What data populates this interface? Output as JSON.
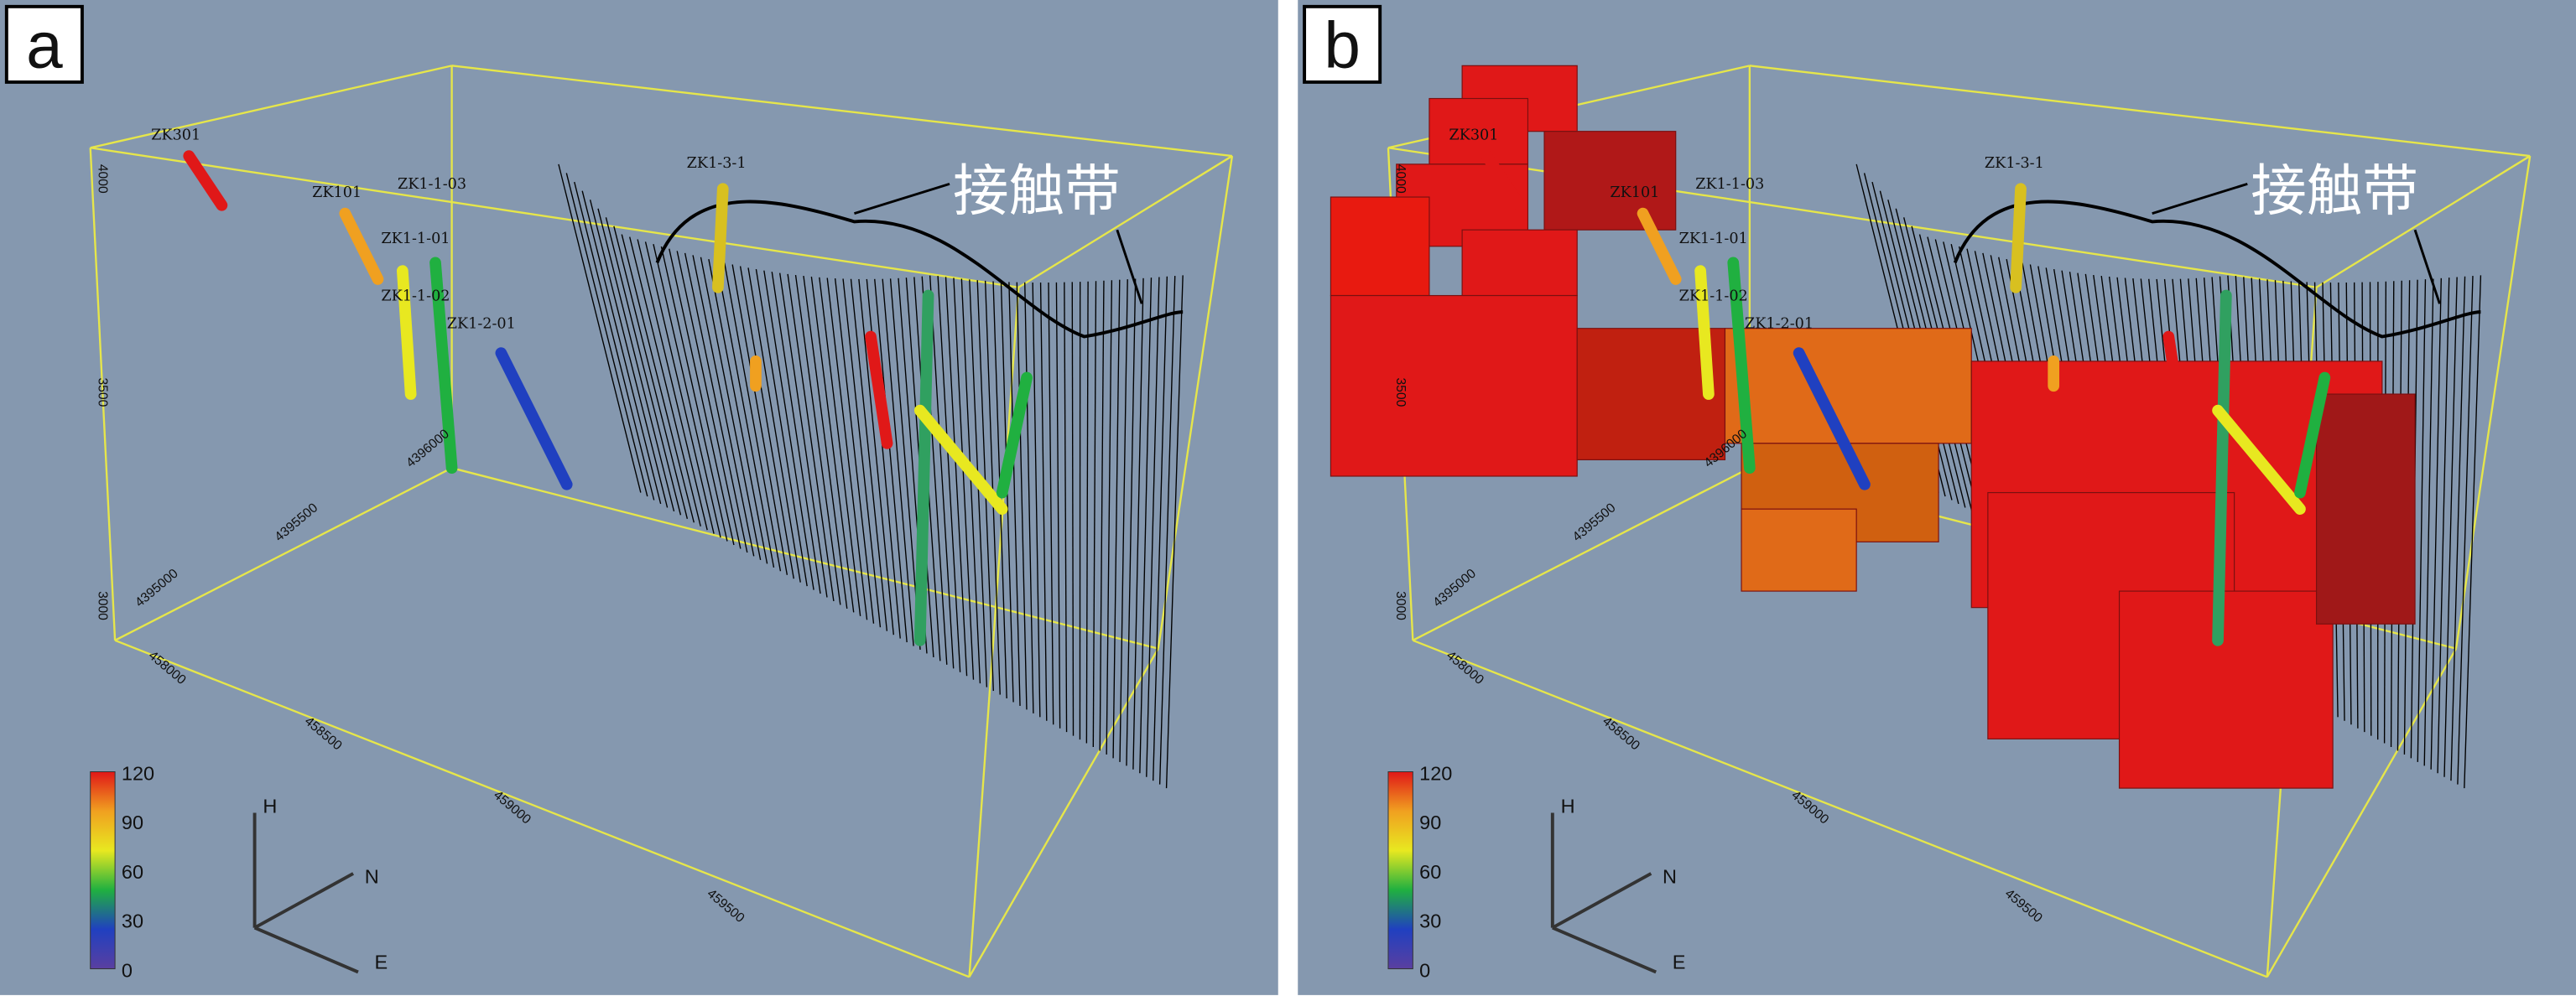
{
  "panels": [
    {
      "label": "a",
      "annotation": "接触带",
      "drill_labels": [
        "ZK301",
        "ZK101",
        "ZK1-1-03",
        "ZK1-1-01",
        "ZK1-1-02",
        "ZK1-2-01",
        "ZK1-3-1"
      ],
      "elevation_ticks": [
        "4000",
        "3500",
        "3000"
      ],
      "easting_ticks": [
        "458000",
        "458500",
        "459000",
        "459500"
      ],
      "northing_ticks": [
        "4395000",
        "4395500",
        "4396000"
      ],
      "colorbar_ticks": [
        "120",
        "90",
        "60",
        "30",
        "0"
      ],
      "compass": [
        "H",
        "N",
        "E"
      ]
    },
    {
      "label": "b",
      "annotation": "接触带",
      "drill_labels": [
        "ZK301",
        "ZK101",
        "ZK1-1-03",
        "ZK1-1-01",
        "ZK1-1-02",
        "ZK1-2-01",
        "ZK1-3-1"
      ],
      "elevation_ticks": [
        "4000",
        "3500",
        "3000"
      ],
      "easting_ticks": [
        "458000",
        "458500",
        "459000",
        "459500"
      ],
      "northing_ticks": [
        "4395000",
        "4395500",
        "4396000"
      ],
      "colorbar_ticks": [
        "120",
        "90",
        "60",
        "30",
        "0"
      ],
      "compass": [
        "H",
        "N",
        "E"
      ]
    }
  ]
}
